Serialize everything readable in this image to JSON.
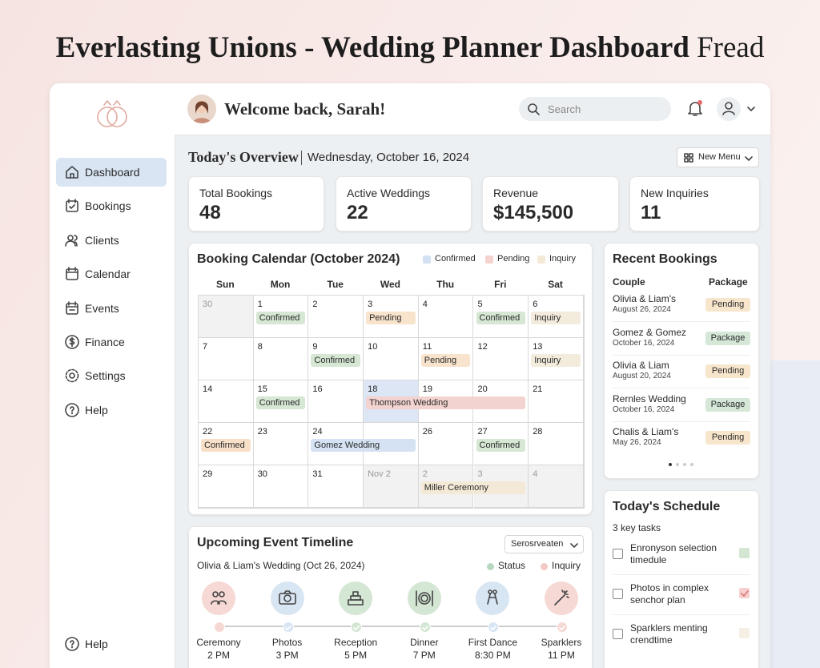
{
  "header": {
    "title": "Everlasting Unions - Wedding Planner Dashboard",
    "title_suffix": "Fread"
  },
  "sidebar": {
    "nav": [
      "Dashboard",
      "Bookings",
      "Clients",
      "Calendar",
      "Events",
      "Finance",
      "Settings",
      "Help"
    ],
    "footer": "Help"
  },
  "topbar": {
    "greeting": "Welcome back, Sarah!",
    "search": "Search"
  },
  "overview": {
    "heading": "Today's Overview",
    "date": "Wednesday, October 16, 2024",
    "menu": "New Menu"
  },
  "stats": [
    {
      "label": "Total Bookings",
      "value": 48
    },
    {
      "label": "Active Weddings",
      "value": 22
    },
    {
      "label": "Revenue",
      "value": "$145,500"
    },
    {
      "label": "New Inquiries",
      "value": 11
    }
  ],
  "calendar": {
    "title": "Booking Calendar (October 2024)",
    "legend": [
      {
        "label": "Confirmed",
        "color": "#d3e1f3"
      },
      {
        "label": "Pending",
        "color": "#f5d3cf"
      },
      {
        "label": "Inquiry",
        "color": "#f5ead8"
      }
    ],
    "weekdays": [
      "Sun",
      "Mon",
      "Tue",
      "Wed",
      "Thu",
      "Fri",
      "Sat"
    ],
    "weeks": [
      [
        {
          "day": "30",
          "outside": true
        },
        {
          "day": "1",
          "event": "Confirmed",
          "color": "#d6e7d4"
        },
        {
          "day": "2"
        },
        {
          "day": "3",
          "event": "Pending",
          "color": "#f8e3cc"
        },
        {
          "day": "4"
        },
        {
          "day": "5",
          "event": "Confirmed",
          "color": "#d6e7d4"
        },
        {
          "day": "6",
          "event": "Inquiry",
          "color": "#f3ebdc"
        }
      ],
      [
        {
          "day": "7"
        },
        {
          "day": "8"
        },
        {
          "day": "9",
          "event": "Confirmed",
          "color": "#d6e7d4"
        },
        {
          "day": "10"
        },
        {
          "day": "11",
          "event": "Pending",
          "color": "#f8e3cc"
        },
        {
          "day": "12"
        },
        {
          "day": "13",
          "event": "Inquiry",
          "color": "#f3ebdc"
        }
      ],
      [
        {
          "day": "14"
        },
        {
          "day": "15",
          "event": "Confirmed",
          "color": "#d6e7d4"
        },
        {
          "day": "16"
        },
        {
          "day": "18",
          "highlight": true,
          "event": "Thompson Wedding",
          "color": "#f3d3d0"
        },
        {
          "day": "19"
        },
        {
          "day": "20"
        },
        {
          "day": "21"
        }
      ],
      [
        {
          "day": "22",
          "event": "Confirmed",
          "color": "#f8e0c8"
        },
        {
          "day": "23"
        },
        {
          "day": "24",
          "event": "Gomez Wedding",
          "color": "#d4e2f3"
        },
        null,
        {
          "day": "26"
        },
        {
          "day": "27",
          "event": "Confirmed",
          "color": "#d6e7d4"
        },
        {
          "day": "28"
        }
      ],
      [
        {
          "day": "29"
        },
        {
          "day": "30"
        },
        {
          "day": "31"
        },
        {
          "day": "Nov 2",
          "outside": true
        },
        {
          "day": "2",
          "outside": true,
          "event": "Miller Ceremony",
          "color": "#f4e9d6"
        },
        {
          "day": "3",
          "outside": true
        },
        {
          "day": "4",
          "outside": true
        }
      ]
    ]
  },
  "recent_bookings": {
    "title": "Recent Bookings",
    "columns": [
      "Couple",
      "Package"
    ],
    "rows": [
      {
        "couple": "Olivia & Liam's",
        "date": "August 26, 2024",
        "package": "Pending",
        "color": "#f8e6cc"
      },
      {
        "couple": "Gomez & Gomez",
        "date": "October 16, 2024",
        "package": "Package",
        "color": "#d5e8d8"
      },
      {
        "couple": "Olivia & Liam",
        "date": "August 20, 2024",
        "package": "Pending",
        "color": "#f8e6cc"
      },
      {
        "couple": "Rernles Wedding",
        "date": "October 16, 2024",
        "package": "Package",
        "color": "#d5e8d8"
      },
      {
        "couple": "Chalis & Liam's",
        "date": "May 26, 2024",
        "package": "Pending",
        "color": "#f8e6cc"
      }
    ]
  },
  "schedule": {
    "title": "Today's Schedule",
    "subtitle": "3 key tasks",
    "tasks": [
      {
        "text": "Enronyson selection timedule",
        "color": "#d3e6d3"
      },
      {
        "text": "Photos in complex senchor plan",
        "color": "#f5d0cf",
        "checked": true
      },
      {
        "text": "Sparklers menting crendtime",
        "color": "#f5efe6"
      }
    ]
  },
  "timeline": {
    "title": "Upcoming Event Timeline",
    "filter": "Serosrveaten",
    "subtitle": "Olivia & Liam's Wedding (Oct 26, 2024)",
    "legend": [
      {
        "label": "Status",
        "color": "#b9d8c0"
      },
      {
        "label": "Inquiry",
        "color": "#f3c9c6"
      }
    ],
    "events": [
      {
        "name": "Ceremony",
        "time": "2 PM",
        "color": "#f6d8d4"
      },
      {
        "name": "Photos",
        "time": "3 PM",
        "color": "#d8e5f3"
      },
      {
        "name": "Reception",
        "time": "5 PM",
        "color": "#d4e6d4"
      },
      {
        "name": "Dinner",
        "time": "7 PM",
        "color": "#d4e6d4"
      },
      {
        "name": "First Dance",
        "time": "8:30 PM",
        "color": "#d8e5f3"
      },
      {
        "name": "Sparklers",
        "time": "11 PM",
        "color": "#f6d8d4"
      }
    ]
  }
}
